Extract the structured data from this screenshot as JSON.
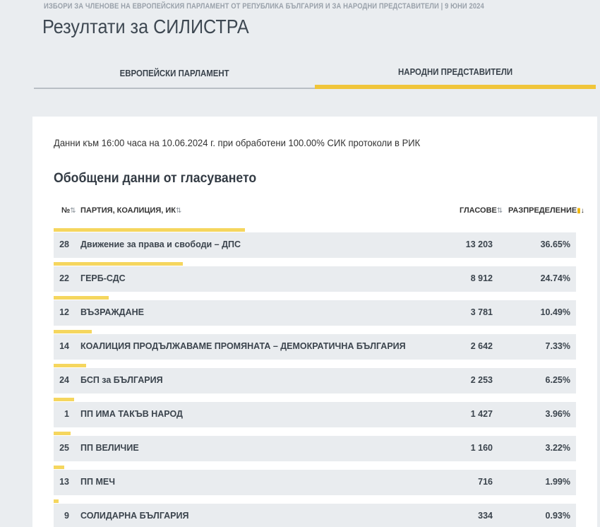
{
  "header": {
    "election_line": "ИЗБОРИ ЗА ЧЛЕНОВЕ НА ЕВРОПЕЙСКИЯ ПАРЛАМЕНТ ОТ РЕПУБЛИКА БЪЛГАРИЯ И ЗА НАРОДНИ ПРЕДСТАВИТЕЛИ | 9 ЮНИ 2024",
    "title": "Резултати за СИЛИСТРА"
  },
  "tabs": [
    {
      "label": "ЕВРОПЕЙСКИ ПАРЛАМЕНТ",
      "active": false
    },
    {
      "label": "НАРОДНИ ПРЕДСТАВИТЕЛИ",
      "active": true
    }
  ],
  "colors": {
    "accent": "#f0c53a",
    "bar": "#f5d65e",
    "row_bg": "#e9ecef",
    "page_bg": "#eaedf0"
  },
  "card": {
    "info": "Данни към 16:00 часа на 10.06.2024 г. при обработени 100.00% СИК протоколи в РИК",
    "section_title": "Обобщени данни от гласуването"
  },
  "table": {
    "headers": {
      "no": "№",
      "party": "ПАРТИЯ, КОАЛИЦИЯ, ИК",
      "votes": "ГЛАСОВЕ",
      "distribution": "РАЗПРЕДЕЛЕНИЕ"
    },
    "sort_icon": "⇅",
    "sort_active_icon": "↓",
    "rows": [
      {
        "no": "28",
        "name": "Движение за права и свободи – ДПС",
        "votes": "13 203",
        "pct": "36.65%",
        "share": 0.3665
      },
      {
        "no": "22",
        "name": "ГЕРБ-СДС",
        "votes": "8 912",
        "pct": "24.74%",
        "share": 0.2474
      },
      {
        "no": "12",
        "name": "ВЪЗРАЖДАНЕ",
        "votes": "3 781",
        "pct": "10.49%",
        "share": 0.1049
      },
      {
        "no": "14",
        "name": "КОАЛИЦИЯ ПРОДЪЛЖАВАМЕ ПРОМЯНАТА – ДЕМОКРАТИЧНА БЪЛГАРИЯ",
        "votes": "2 642",
        "pct": "7.33%",
        "share": 0.0733
      },
      {
        "no": "24",
        "name": "БСП за БЪЛГАРИЯ",
        "votes": "2 253",
        "pct": "6.25%",
        "share": 0.0625
      },
      {
        "no": "1",
        "name": "ПП ИМА ТАКЪВ НАРОД",
        "votes": "1 427",
        "pct": "3.96%",
        "share": 0.0396
      },
      {
        "no": "25",
        "name": "ПП ВЕЛИЧИЕ",
        "votes": "1 160",
        "pct": "3.22%",
        "share": 0.0322
      },
      {
        "no": "13",
        "name": "ПП МЕЧ",
        "votes": "716",
        "pct": "1.99%",
        "share": 0.0199
      },
      {
        "no": "9",
        "name": "СОЛИДАРНА БЪЛГАРИЯ",
        "votes": "334",
        "pct": "0.93%",
        "share": 0.0093
      }
    ]
  }
}
